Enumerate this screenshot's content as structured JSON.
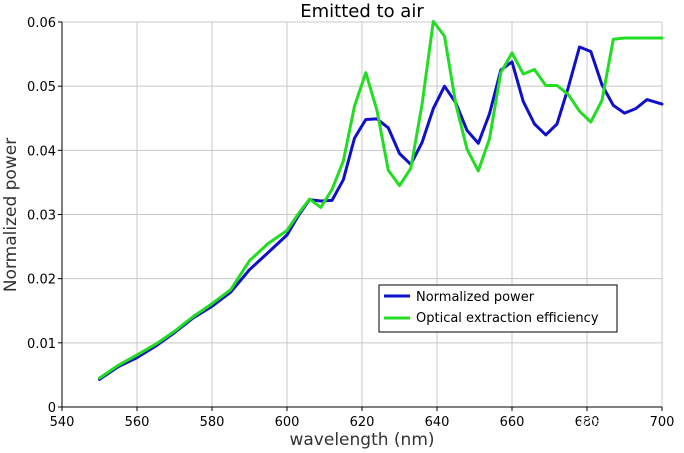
{
  "chart_data": {
    "type": "line",
    "title": "Emitted to air",
    "xlabel": "wavelength (nm)",
    "ylabel": "Normalized power",
    "xlim": [
      540,
      700
    ],
    "ylim": [
      0,
      0.06
    ],
    "x_ticks": [
      "540",
      "560",
      "580",
      "600",
      "620",
      "640",
      "660",
      "680",
      "700"
    ],
    "y_ticks": [
      "0",
      "0.01",
      "0.02",
      "0.03",
      "0.04",
      "0.05",
      "0.06"
    ],
    "grid": true,
    "legend_position": "lower-right",
    "series": [
      {
        "name": "Normalized power",
        "color": "#1010cc",
        "x": [
          550,
          555,
          560,
          565,
          570,
          575,
          580,
          585,
          590,
          595,
          600,
          603,
          606,
          609,
          612,
          615,
          618,
          621,
          624,
          627,
          630,
          633,
          636,
          639,
          642,
          645,
          648,
          651,
          654,
          657,
          660,
          663,
          666,
          669,
          672,
          675,
          678,
          681,
          684,
          687,
          690,
          693,
          696,
          700
        ],
        "y": [
          0.0043,
          0.0063,
          0.0077,
          0.0095,
          0.0116,
          0.0139,
          0.0157,
          0.0179,
          0.0214,
          0.0241,
          0.0268,
          0.0298,
          0.0323,
          0.0321,
          0.0322,
          0.0354,
          0.0419,
          0.0448,
          0.0449,
          0.0435,
          0.0395,
          0.0378,
          0.0412,
          0.0465,
          0.05,
          0.0474,
          0.0431,
          0.0411,
          0.0457,
          0.0525,
          0.0538,
          0.0476,
          0.0441,
          0.0424,
          0.0441,
          0.0498,
          0.0561,
          0.0554,
          0.0502,
          0.047,
          0.0458,
          0.0465,
          0.0479,
          0.0472
        ]
      },
      {
        "name": "Optical extraction efficiency",
        "color": "#22dd22",
        "x": [
          550,
          555,
          560,
          565,
          570,
          575,
          580,
          585,
          590,
          595,
          600,
          603,
          606,
          609,
          612,
          615,
          618,
          621,
          624,
          627,
          630,
          633,
          636,
          639,
          642,
          645,
          648,
          651,
          654,
          657,
          660,
          663,
          666,
          669,
          672,
          675,
          678,
          681,
          684,
          687,
          690,
          693,
          696,
          700
        ],
        "y": [
          0.0045,
          0.0065,
          0.0081,
          0.0098,
          0.0118,
          0.0141,
          0.0161,
          0.0183,
          0.0228,
          0.0255,
          0.0275,
          0.0301,
          0.0324,
          0.0311,
          0.0339,
          0.0383,
          0.0469,
          0.0521,
          0.0462,
          0.0369,
          0.0345,
          0.0372,
          0.0471,
          0.0601,
          0.0578,
          0.0472,
          0.0402,
          0.0368,
          0.0418,
          0.0521,
          0.0552,
          0.0519,
          0.0526,
          0.0501,
          0.0501,
          0.0487,
          0.0461,
          0.0444,
          0.0478,
          0.0573,
          0.0575,
          0.0575,
          0.0575,
          0.0575
        ]
      }
    ]
  },
  "watermark": "知乎 @新科益"
}
